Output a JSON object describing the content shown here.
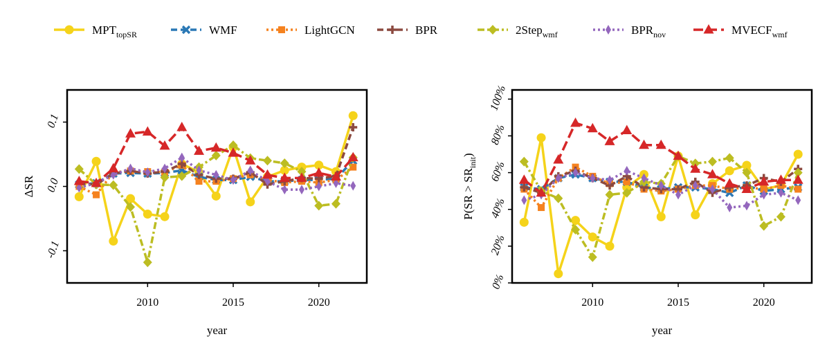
{
  "legend": {
    "items": [
      {
        "key": "mpt",
        "label": "MPT",
        "sub": "topSR"
      },
      {
        "key": "wmf",
        "label": "WMF",
        "sub": ""
      },
      {
        "key": "lightgcn",
        "label": "LightGCN",
        "sub": ""
      },
      {
        "key": "bpr",
        "label": "BPR",
        "sub": ""
      },
      {
        "key": "twostep",
        "label": "2Step",
        "sub": "wmf"
      },
      {
        "key": "bprnov",
        "label": "BPR",
        "sub": "nov"
      },
      {
        "key": "mvecf",
        "label": "MVECF",
        "sub": "wmf"
      }
    ]
  },
  "series_styles": {
    "mpt": {
      "color": "#f5d31a",
      "dash": "solid",
      "marker": "circle"
    },
    "wmf": {
      "color": "#2a78b5",
      "dash": "dash",
      "marker": "x"
    },
    "lightgcn": {
      "color": "#f5821f",
      "dash": "dot",
      "marker": "square"
    },
    "bpr": {
      "color": "#8c4a40",
      "dash": "dash",
      "marker": "plus"
    },
    "twostep": {
      "color": "#bcbd22",
      "dash": "dashdot",
      "marker": "diamond"
    },
    "bprnov": {
      "color": "#9467bd",
      "dash": "dot",
      "marker": "thindiamond"
    },
    "mvecf": {
      "color": "#d62728",
      "dash": "longdash",
      "marker": "triangle"
    }
  },
  "chart_data": [
    {
      "type": "line",
      "title": "",
      "xlabel": "year",
      "ylabel": "ΔSR",
      "xlim": [
        2005.3,
        2022.8
      ],
      "ylim": [
        -0.15,
        0.15
      ],
      "x": [
        2006,
        2007,
        2008,
        2009,
        2010,
        2011,
        2012,
        2013,
        2014,
        2015,
        2016,
        2017,
        2018,
        2019,
        2020,
        2021,
        2022
      ],
      "xticks": [
        "2010",
        "2015",
        "2020"
      ],
      "xtick_values": [
        2010,
        2015,
        2020
      ],
      "yticks": [
        "0.1",
        "0.0",
        "-0.1"
      ],
      "ytick_values": [
        0.1,
        0.0,
        -0.1
      ],
      "percent_ticks": false,
      "series": [
        {
          "key": "mpt",
          "name": "MPT_topSR",
          "values": [
            -0.016,
            0.039,
            -0.085,
            -0.019,
            -0.043,
            -0.047,
            0.035,
            0.022,
            -0.015,
            0.061,
            -0.024,
            0.015,
            0.025,
            0.03,
            0.033,
            0.023,
            0.11
          ]
        },
        {
          "key": "wmf",
          "name": "WMF",
          "values": [
            0.003,
            0.005,
            0.02,
            0.021,
            0.02,
            0.021,
            0.025,
            0.015,
            0.01,
            0.01,
            0.015,
            0.008,
            0.008,
            0.01,
            0.01,
            0.012,
            0.04
          ]
        },
        {
          "key": "lightgcn",
          "name": "LightGCN",
          "values": [
            0.0,
            -0.013,
            0.022,
            0.024,
            0.023,
            0.022,
            0.033,
            0.008,
            0.008,
            0.012,
            0.018,
            0.01,
            0.006,
            0.008,
            0.006,
            0.01,
            0.03
          ]
        },
        {
          "key": "bpr",
          "name": "BPR",
          "values": [
            0.004,
            0.003,
            0.02,
            0.024,
            0.02,
            0.023,
            0.035,
            0.018,
            0.012,
            0.012,
            0.022,
            0.003,
            0.008,
            0.013,
            0.012,
            0.016,
            0.092
          ]
        },
        {
          "key": "twostep",
          "name": "2Step_wmf",
          "values": [
            0.027,
            0.003,
            0.002,
            -0.032,
            -0.118,
            0.014,
            0.016,
            0.03,
            0.048,
            0.064,
            0.044,
            0.04,
            0.036,
            0.023,
            -0.03,
            -0.027,
            0.045
          ]
        },
        {
          "key": "bprnov",
          "name": "BPR_nov",
          "values": [
            -0.002,
            0.005,
            0.018,
            0.028,
            0.022,
            0.028,
            0.045,
            0.025,
            0.018,
            0.01,
            0.025,
            0.008,
            -0.005,
            -0.005,
            0.0,
            0.005,
            0.001
          ]
        },
        {
          "key": "mvecf",
          "name": "MVECF_wmf",
          "values": [
            0.008,
            0.005,
            0.028,
            0.082,
            0.085,
            0.063,
            0.092,
            0.055,
            0.06,
            0.052,
            0.04,
            0.018,
            0.013,
            0.013,
            0.021,
            0.015,
            0.045
          ]
        }
      ]
    },
    {
      "type": "line",
      "title": "",
      "xlabel": "year",
      "ylabel": "P(SR > SR_init)",
      "ylabel_main": "P(SR > SR",
      "ylabel_sub": "init",
      "ylabel_end": ")",
      "xlim": [
        2005.3,
        2022.8
      ],
      "ylim": [
        0,
        1.05
      ],
      "x": [
        2006,
        2007,
        2008,
        2009,
        2010,
        2011,
        2012,
        2013,
        2014,
        2015,
        2016,
        2017,
        2018,
        2019,
        2020,
        2021,
        2022
      ],
      "xticks": [
        "2010",
        "2015",
        "2020"
      ],
      "xtick_values": [
        2010,
        2015,
        2020
      ],
      "yticks": [
        "0%",
        "20%",
        "40%",
        "60%",
        "80%",
        "100%"
      ],
      "ytick_values": [
        0,
        0.2,
        0.4,
        0.6,
        0.8,
        1.0
      ],
      "percent_ticks": true,
      "series": [
        {
          "key": "mpt",
          "name": "MPT_topSR",
          "values": [
            0.33,
            0.79,
            0.05,
            0.34,
            0.25,
            0.2,
            0.52,
            0.59,
            0.36,
            0.69,
            0.37,
            0.54,
            0.61,
            0.64,
            0.51,
            0.53,
            0.7
          ]
        },
        {
          "key": "wmf",
          "name": "WMF",
          "values": [
            0.52,
            0.51,
            0.57,
            0.59,
            0.57,
            0.55,
            0.55,
            0.52,
            0.51,
            0.52,
            0.52,
            0.51,
            0.49,
            0.53,
            0.5,
            0.51,
            0.52
          ]
        },
        {
          "key": "lightgcn",
          "name": "LightGCN",
          "values": [
            0.51,
            0.41,
            0.57,
            0.63,
            0.58,
            0.54,
            0.55,
            0.51,
            0.5,
            0.51,
            0.53,
            0.53,
            0.51,
            0.52,
            0.51,
            0.53,
            0.51
          ]
        },
        {
          "key": "bpr",
          "name": "BPR",
          "values": [
            0.52,
            0.49,
            0.58,
            0.61,
            0.57,
            0.53,
            0.58,
            0.52,
            0.51,
            0.51,
            0.55,
            0.49,
            0.52,
            0.53,
            0.57,
            0.55,
            0.62
          ]
        },
        {
          "key": "twostep",
          "name": "2Step_wmf",
          "values": [
            0.66,
            0.5,
            0.46,
            0.29,
            0.14,
            0.48,
            0.49,
            0.55,
            0.54,
            0.69,
            0.65,
            0.66,
            0.68,
            0.6,
            0.31,
            0.36,
            0.6
          ]
        },
        {
          "key": "bprnov",
          "name": "BPR_nov",
          "values": [
            0.45,
            0.48,
            0.57,
            0.6,
            0.57,
            0.56,
            0.61,
            0.57,
            0.53,
            0.48,
            0.53,
            0.51,
            0.41,
            0.42,
            0.48,
            0.49,
            0.45
          ]
        },
        {
          "key": "mvecf",
          "name": "MVECF_wmf",
          "values": [
            0.56,
            0.49,
            0.67,
            0.87,
            0.84,
            0.77,
            0.83,
            0.75,
            0.75,
            0.69,
            0.62,
            0.59,
            0.54,
            0.51,
            0.55,
            0.56,
            0.56
          ]
        }
      ]
    }
  ]
}
